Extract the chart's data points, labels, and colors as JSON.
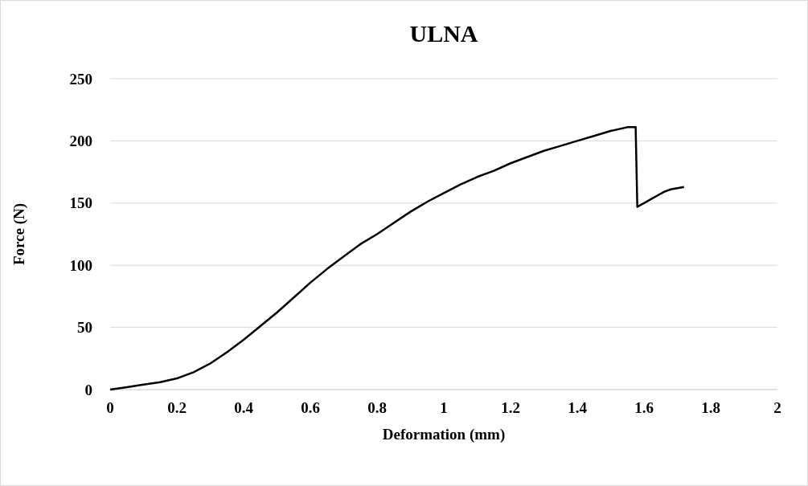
{
  "chart_data": {
    "type": "line",
    "title": "ULNA",
    "xlabel": "Deformation (mm)",
    "ylabel": "Force (N)",
    "x": [
      0,
      0.05,
      0.1,
      0.15,
      0.2,
      0.25,
      0.3,
      0.35,
      0.4,
      0.45,
      0.5,
      0.55,
      0.6,
      0.65,
      0.7,
      0.75,
      0.8,
      0.85,
      0.9,
      0.95,
      1.0,
      1.05,
      1.1,
      1.15,
      1.2,
      1.25,
      1.3,
      1.35,
      1.4,
      1.45,
      1.5,
      1.55,
      1.575,
      1.58,
      1.6,
      1.62,
      1.64,
      1.66,
      1.68,
      1.7,
      1.72
    ],
    "series": [
      {
        "color": "#000000",
        "values": [
          0,
          2,
          4,
          6,
          9,
          14,
          21,
          30,
          40,
          51,
          62,
          74,
          86,
          97,
          107,
          117,
          125,
          134,
          143,
          151,
          158,
          165,
          171,
          176,
          182,
          187,
          192,
          196,
          200,
          204,
          208,
          211,
          211,
          147,
          150,
          153,
          156,
          159,
          161,
          162,
          163
        ]
      }
    ],
    "xlim": [
      0,
      2
    ],
    "xticks": [
      0,
      0.2,
      0.4,
      0.6,
      0.8,
      1,
      1.2,
      1.4,
      1.6,
      1.8,
      2
    ],
    "ylim": [
      0,
      250
    ],
    "yticks": [
      0,
      50,
      100,
      150,
      200,
      250
    ],
    "grid": "y",
    "marker": "none",
    "line_style": "solid"
  }
}
